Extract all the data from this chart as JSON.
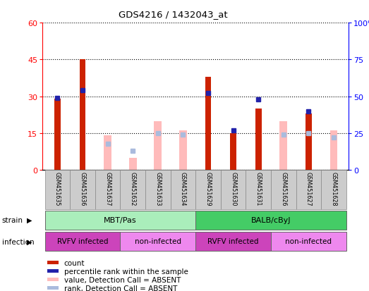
{
  "title": "GDS4216 / 1432043_at",
  "samples": [
    "GSM451635",
    "GSM451636",
    "GSM451637",
    "GSM451632",
    "GSM451633",
    "GSM451634",
    "GSM451629",
    "GSM451630",
    "GSM451631",
    "GSM451626",
    "GSM451627",
    "GSM451628"
  ],
  "count_values": [
    29,
    45,
    null,
    null,
    null,
    null,
    38,
    15,
    25,
    null,
    23,
    null
  ],
  "percentile_rank": [
    49,
    54,
    null,
    null,
    null,
    null,
    52,
    27,
    48,
    null,
    40,
    null
  ],
  "value_absent": [
    null,
    null,
    14,
    5,
    20,
    16,
    null,
    null,
    null,
    20,
    null,
    16
  ],
  "rank_absent": [
    null,
    null,
    18,
    13,
    25,
    24,
    null,
    null,
    null,
    24,
    25,
    22
  ],
  "strain_groups": [
    {
      "label": "MBT/Pas",
      "start": 0,
      "end": 6,
      "color": "#AAEEBB"
    },
    {
      "label": "BALB/cByJ",
      "start": 6,
      "end": 12,
      "color": "#44CC66"
    }
  ],
  "infection_groups": [
    {
      "label": "RVFV infected",
      "start": 0,
      "end": 3,
      "color": "#CC44BB"
    },
    {
      "label": "non-infected",
      "start": 3,
      "end": 6,
      "color": "#EE88EE"
    },
    {
      "label": "RVFV infected",
      "start": 6,
      "end": 9,
      "color": "#CC44BB"
    },
    {
      "label": "non-infected",
      "start": 9,
      "end": 12,
      "color": "#EE88EE"
    }
  ],
  "ylim_left": [
    0,
    60
  ],
  "ylim_right": [
    0,
    100
  ],
  "yticks_left": [
    0,
    15,
    30,
    45,
    60
  ],
  "yticks_right": [
    0,
    25,
    50,
    75,
    100
  ],
  "bar_color_count": "#CC2200",
  "bar_color_value_absent": "#FFBBBB",
  "marker_color_percentile": "#2222AA",
  "marker_color_rank_absent": "#AABBDD",
  "legend_items": [
    {
      "color": "#CC2200",
      "label": "count",
      "marker": "square"
    },
    {
      "color": "#2222AA",
      "label": "percentile rank within the sample",
      "marker": "square"
    },
    {
      "color": "#FFBBBB",
      "label": "value, Detection Call = ABSENT",
      "marker": "square"
    },
    {
      "color": "#AABBDD",
      "label": "rank, Detection Call = ABSENT",
      "marker": "square"
    }
  ]
}
